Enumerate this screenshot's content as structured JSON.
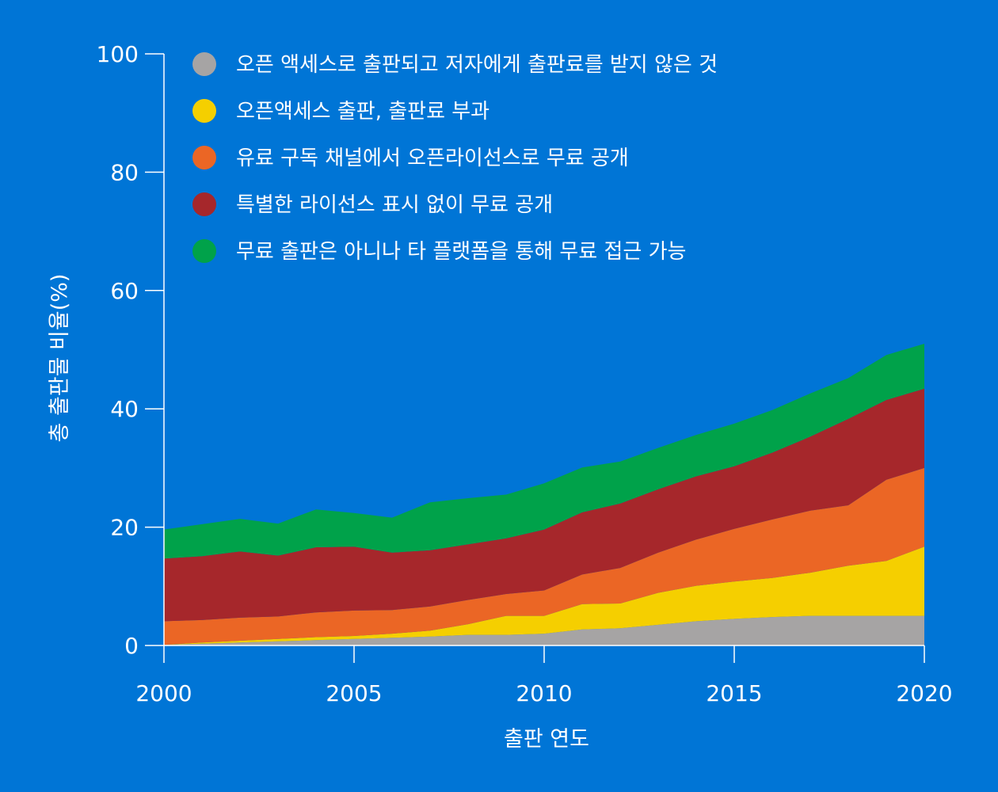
{
  "chart_data": {
    "type": "area",
    "stacked": true,
    "xlabel": "출판 연도",
    "ylabel": "총 출판물 비율(%)",
    "xlim": [
      2000,
      2020
    ],
    "ylim": [
      0,
      100
    ],
    "xticks": [
      2000,
      2005,
      2010,
      2015,
      2020
    ],
    "yticks": [
      0,
      20,
      40,
      60,
      80,
      100
    ],
    "grid": false,
    "legend_position": "top-left",
    "x": [
      2000,
      2001,
      2002,
      2003,
      2004,
      2005,
      2006,
      2007,
      2008,
      2009,
      2010,
      2011,
      2012,
      2013,
      2014,
      2015,
      2016,
      2017,
      2018,
      2019,
      2020
    ],
    "series": [
      {
        "name": "오픈 액세스로 출판되고 저자에게 출판료를 받지 않은 것",
        "color": "#a6a4a4",
        "values": [
          0.1,
          0.3,
          0.5,
          0.7,
          0.9,
          1.1,
          1.3,
          1.5,
          1.8,
          1.8,
          2.0,
          2.7,
          2.9,
          3.5,
          4.1,
          4.5,
          4.8,
          5.0,
          5.0,
          5.0,
          5.0
        ]
      },
      {
        "name": "오픈액세스 출판, 출판료 부과",
        "color": "#f5cf00",
        "values": [
          0.0,
          0.2,
          0.3,
          0.4,
          0.5,
          0.5,
          0.7,
          1.0,
          1.8,
          3.2,
          3.0,
          4.3,
          4.2,
          5.4,
          6.0,
          6.3,
          6.6,
          7.3,
          8.5,
          9.3,
          11.7
        ]
      },
      {
        "name": "유료 구독 채널에서 오픈라이선스로 무료 공개",
        "color": "#eb6625",
        "values": [
          4.0,
          3.8,
          3.9,
          3.8,
          4.2,
          4.3,
          4.0,
          4.1,
          4.1,
          3.7,
          4.3,
          5.0,
          6.0,
          6.8,
          7.8,
          8.9,
          9.9,
          10.5,
          10.2,
          13.7,
          13.3
        ]
      },
      {
        "name": "특별한 라이선스 표시 없이 무료 공개",
        "color": "#a6272b",
        "values": [
          10.6,
          10.8,
          11.2,
          10.3,
          11.0,
          10.8,
          9.7,
          9.5,
          9.4,
          9.4,
          10.3,
          10.5,
          10.9,
          10.7,
          10.7,
          10.6,
          11.3,
          12.5,
          14.6,
          13.5,
          13.4
        ]
      },
      {
        "name": "무료 출판은 아니나 타 플랫폼을 통해 무료 접근 가능",
        "color": "#00a24a",
        "values": [
          4.9,
          5.4,
          5.5,
          5.4,
          6.4,
          5.7,
          5.9,
          8.1,
          7.8,
          7.4,
          7.8,
          7.6,
          7.1,
          7.0,
          7.0,
          7.2,
          7.2,
          7.3,
          6.9,
          7.6,
          7.6
        ]
      }
    ]
  }
}
